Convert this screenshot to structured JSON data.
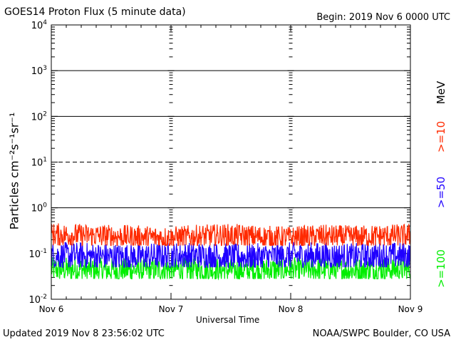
{
  "header": {
    "title": "GOES14 Proton Flux (5 minute data)",
    "begin": "Begin: 2019 Nov 6 0000 UTC"
  },
  "footer": {
    "updated": "Updated 2019 Nov  8 23:56:02 UTC",
    "credit": "NOAA/SWPC Boulder, CO USA"
  },
  "colors": {
    "p10": "#ff2a00",
    "p50": "#1f00ff",
    "p100": "#00ee00",
    "axis": "#000000"
  },
  "chart_data": {
    "type": "line",
    "xlabel": "Universal Time",
    "ylabel": "Particles cm⁻²s⁻¹sr⁻¹",
    "unit": "MeV",
    "yscale": "log",
    "ylim": [
      0.01,
      10000
    ],
    "y_ticks": [
      {
        "value": 0.01,
        "base": "10",
        "exp": "-2"
      },
      {
        "value": 0.1,
        "base": "10",
        "exp": "-1"
      },
      {
        "value": 1,
        "base": "10",
        "exp": "0"
      },
      {
        "value": 10,
        "base": "10",
        "exp": "1"
      },
      {
        "value": 100,
        "base": "10",
        "exp": "2"
      },
      {
        "value": 1000,
        "base": "10",
        "exp": "3"
      },
      {
        "value": 10000,
        "base": "10",
        "exp": "4"
      }
    ],
    "x_ticks": [
      "Nov 6",
      "Nov 7",
      "Nov 8",
      "Nov 9"
    ],
    "xlim": [
      "2019-11-06 00:00",
      "2019-11-09 00:00"
    ],
    "threshold_lines": [
      {
        "value": 1,
        "style": "solid"
      },
      {
        "value": 10,
        "style": "dashed"
      },
      {
        "value": 100,
        "style": "solid"
      },
      {
        "value": 1000,
        "style": "solid"
      }
    ],
    "series": [
      {
        "name": ">=10",
        "color": "#ff2a00",
        "x": [
          "2019-11-06 00:00",
          "2019-11-06 06:00",
          "2019-11-06 12:00",
          "2019-11-06 18:00",
          "2019-11-07 00:00",
          "2019-11-07 06:00",
          "2019-11-07 12:00",
          "2019-11-07 18:00",
          "2019-11-08 00:00",
          "2019-11-08 06:00",
          "2019-11-08 12:00",
          "2019-11-08 18:00",
          "2019-11-09 00:00"
        ],
        "values": [
          0.26,
          0.25,
          0.24,
          0.23,
          0.22,
          0.24,
          0.25,
          0.23,
          0.22,
          0.24,
          0.23,
          0.24,
          0.25
        ],
        "min": 0.15,
        "max": 0.6
      },
      {
        "name": ">=50",
        "color": "#1f00ff",
        "x": [
          "2019-11-06 00:00",
          "2019-11-06 06:00",
          "2019-11-06 12:00",
          "2019-11-06 18:00",
          "2019-11-07 00:00",
          "2019-11-07 06:00",
          "2019-11-07 12:00",
          "2019-11-07 18:00",
          "2019-11-08 00:00",
          "2019-11-08 06:00",
          "2019-11-08 12:00",
          "2019-11-08 18:00",
          "2019-11-09 00:00"
        ],
        "values": [
          0.09,
          0.09,
          0.085,
          0.085,
          0.09,
          0.09,
          0.085,
          0.085,
          0.09,
          0.09,
          0.085,
          0.09,
          0.09
        ],
        "min": 0.05,
        "max": 0.25
      },
      {
        "name": ">=100",
        "color": "#00ee00",
        "x": [
          "2019-11-06 00:00",
          "2019-11-06 06:00",
          "2019-11-06 12:00",
          "2019-11-06 18:00",
          "2019-11-07 00:00",
          "2019-11-07 06:00",
          "2019-11-07 12:00",
          "2019-11-07 18:00",
          "2019-11-08 00:00",
          "2019-11-08 06:00",
          "2019-11-08 12:00",
          "2019-11-08 18:00",
          "2019-11-09 00:00"
        ],
        "values": [
          0.045,
          0.045,
          0.043,
          0.043,
          0.045,
          0.045,
          0.043,
          0.043,
          0.045,
          0.045,
          0.043,
          0.045,
          0.045
        ],
        "min": 0.028,
        "max": 0.12
      }
    ]
  }
}
